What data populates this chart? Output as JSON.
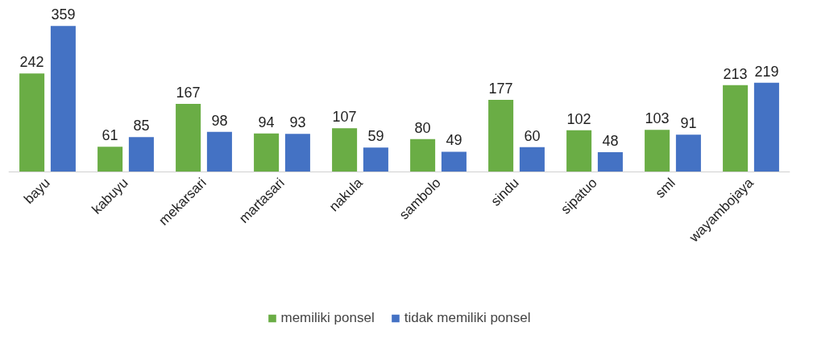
{
  "chart_data": {
    "type": "bar",
    "categories": [
      "bayu",
      "kabuyu",
      "mekarsari",
      "martasari",
      "nakula",
      "sambolo",
      "sindu",
      "sipatuo",
      "sml",
      "wayambojaya"
    ],
    "series": [
      {
        "name": "memiliki ponsel",
        "color": "#6aad45",
        "values": [
          242,
          61,
          167,
          94,
          107,
          80,
          177,
          102,
          103,
          213
        ]
      },
      {
        "name": "tidak memiliki ponsel",
        "color": "#4472c4",
        "values": [
          359,
          85,
          98,
          93,
          59,
          49,
          60,
          48,
          91,
          219
        ]
      }
    ],
    "data_labels": true,
    "legend": "bottom",
    "grid": false,
    "tick_labels": "x"
  }
}
